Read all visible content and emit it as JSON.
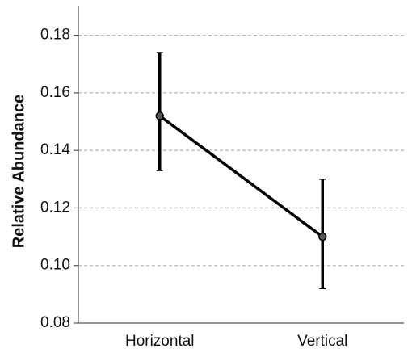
{
  "chart_data": {
    "type": "line",
    "title": "",
    "xlabel": "",
    "ylabel": "Relative Abundance",
    "categories": [
      "Horizontal",
      "Vertical"
    ],
    "series": [
      {
        "values": [
          0.152,
          0.11
        ],
        "error_low": [
          0.133,
          0.092
        ],
        "error_high": [
          0.174,
          0.13
        ]
      }
    ],
    "ylim": [
      0.08,
      0.19
    ],
    "yticks": [
      "0.08",
      "0.10",
      "0.12",
      "0.14",
      "0.16",
      "0.18"
    ],
    "grid": "horizontal dashed",
    "legend": "none",
    "colors": {
      "line": "#000000",
      "grid": "#b8b8b8",
      "axis": "#555555"
    }
  }
}
